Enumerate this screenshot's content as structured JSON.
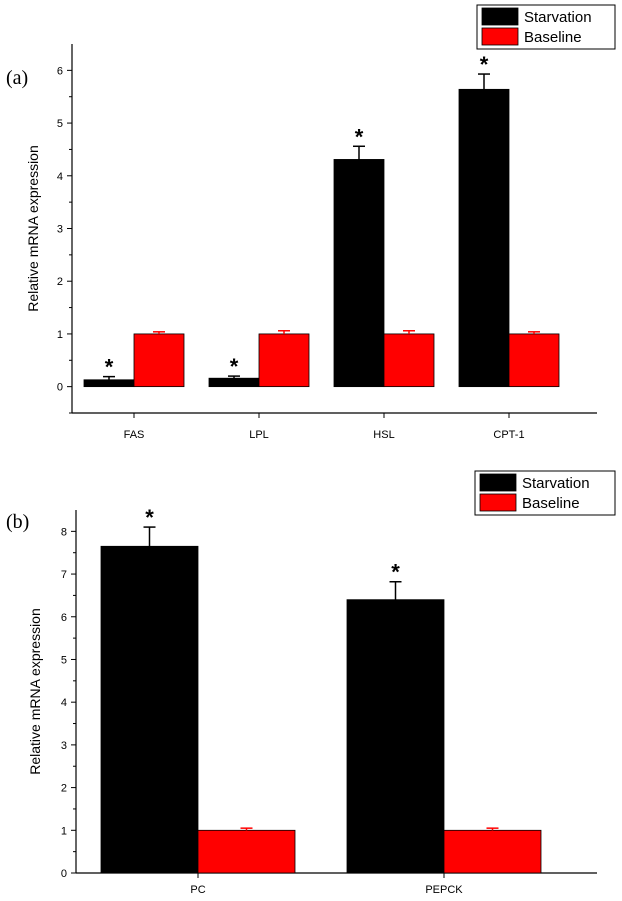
{
  "chart_data": [
    {
      "type": "bar",
      "panel_label": "(a)",
      "categories": [
        "FAS",
        "LPL",
        "HSL",
        "CPT-1"
      ],
      "series": [
        {
          "name": "Starvation",
          "color": "#000000",
          "values": [
            0.13,
            0.16,
            4.31,
            5.64
          ],
          "errors": [
            0.06,
            0.04,
            0.25,
            0.29
          ],
          "significance": [
            "*",
            "*",
            "*",
            "*"
          ]
        },
        {
          "name": "Baseline",
          "color": "#ff0000",
          "values": [
            1.0,
            1.0,
            1.0,
            1.0
          ],
          "errors": [
            0.04,
            0.06,
            0.06,
            0.04
          ],
          "significance": [
            "",
            "",
            "",
            ""
          ]
        }
      ],
      "ylabel": "Relative mRNA expression",
      "xlabel": "",
      "ylim": [
        -0.5,
        6.5
      ],
      "yticks": [
        0,
        1,
        2,
        3,
        4,
        5,
        6
      ],
      "legend_position": "top-right",
      "grid": false
    },
    {
      "type": "bar",
      "panel_label": "(b)",
      "categories": [
        "PC",
        "PEPCK"
      ],
      "series": [
        {
          "name": "Starvation",
          "color": "#000000",
          "values": [
            7.65,
            6.4
          ],
          "errors": [
            0.45,
            0.42
          ],
          "significance": [
            "*",
            "*"
          ]
        },
        {
          "name": "Baseline",
          "color": "#ff0000",
          "values": [
            1.0,
            1.0
          ],
          "errors": [
            0.05,
            0.05
          ],
          "significance": [
            "",
            ""
          ]
        }
      ],
      "ylabel": "Relative mRNA expression",
      "xlabel": "",
      "ylim": [
        0,
        8.5
      ],
      "yticks": [
        0,
        1,
        2,
        3,
        4,
        5,
        6,
        7,
        8
      ],
      "legend_position": "top-right",
      "grid": false
    }
  ]
}
